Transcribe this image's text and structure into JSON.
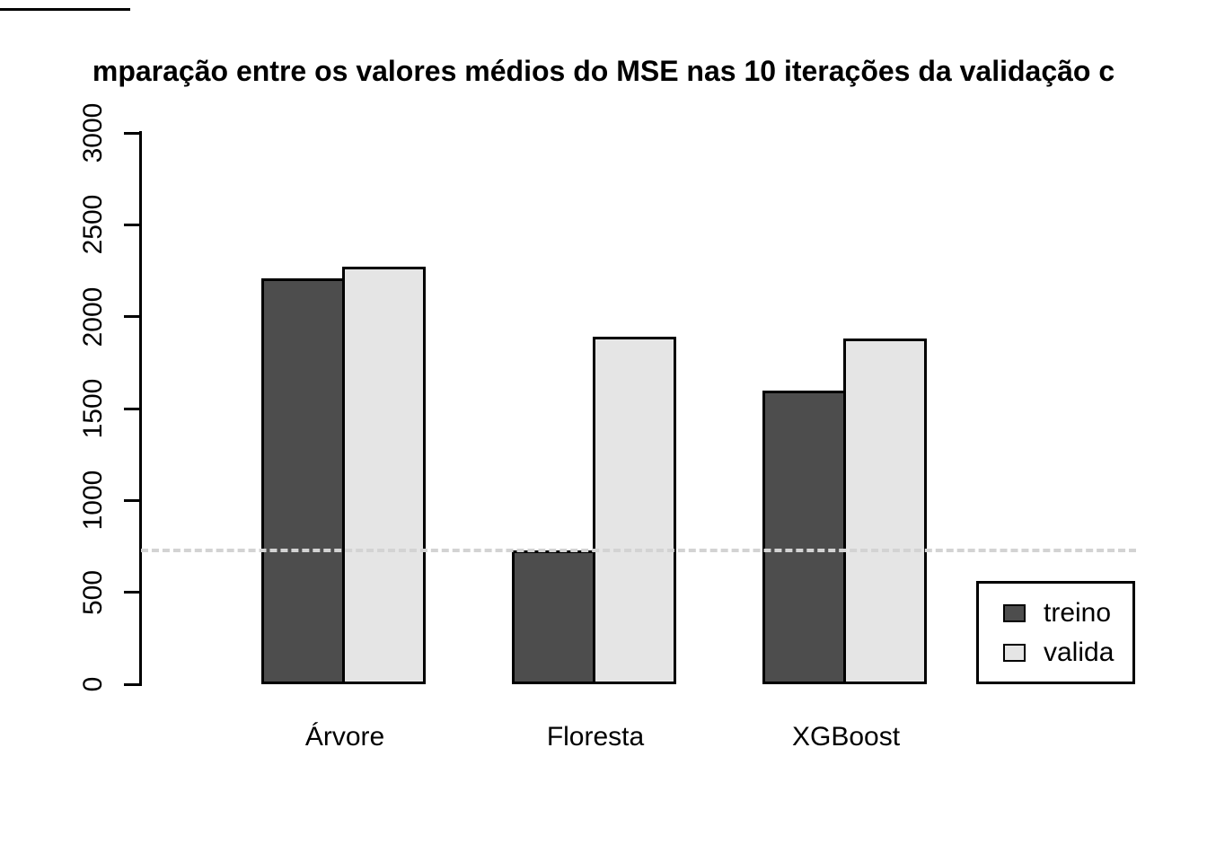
{
  "title": "mparação entre os valores médios do MSE nas 10 iterações da validação c",
  "chart_data": {
    "type": "bar",
    "categories": [
      "Árvore",
      "Floresta",
      "XGBoost"
    ],
    "series": [
      {
        "name": "treino",
        "color": "#4d4d4d",
        "values": [
          2210,
          730,
          1600
        ]
      },
      {
        "name": "valida",
        "color": "#e5e5e5",
        "values": [
          2270,
          1890,
          1880
        ]
      }
    ],
    "ylim": [
      0,
      3000
    ],
    "yticks": [
      0,
      500,
      1000,
      1500,
      2000,
      2500,
      3000
    ],
    "xlabel": "",
    "ylabel": "",
    "grid": false,
    "bar_border_color": "#000000",
    "reference_line": {
      "value": 730,
      "style": "dashed",
      "color": "#d3d3d3"
    },
    "legend": {
      "position": "bottom-right",
      "entries": [
        "treino",
        "valida"
      ]
    }
  }
}
